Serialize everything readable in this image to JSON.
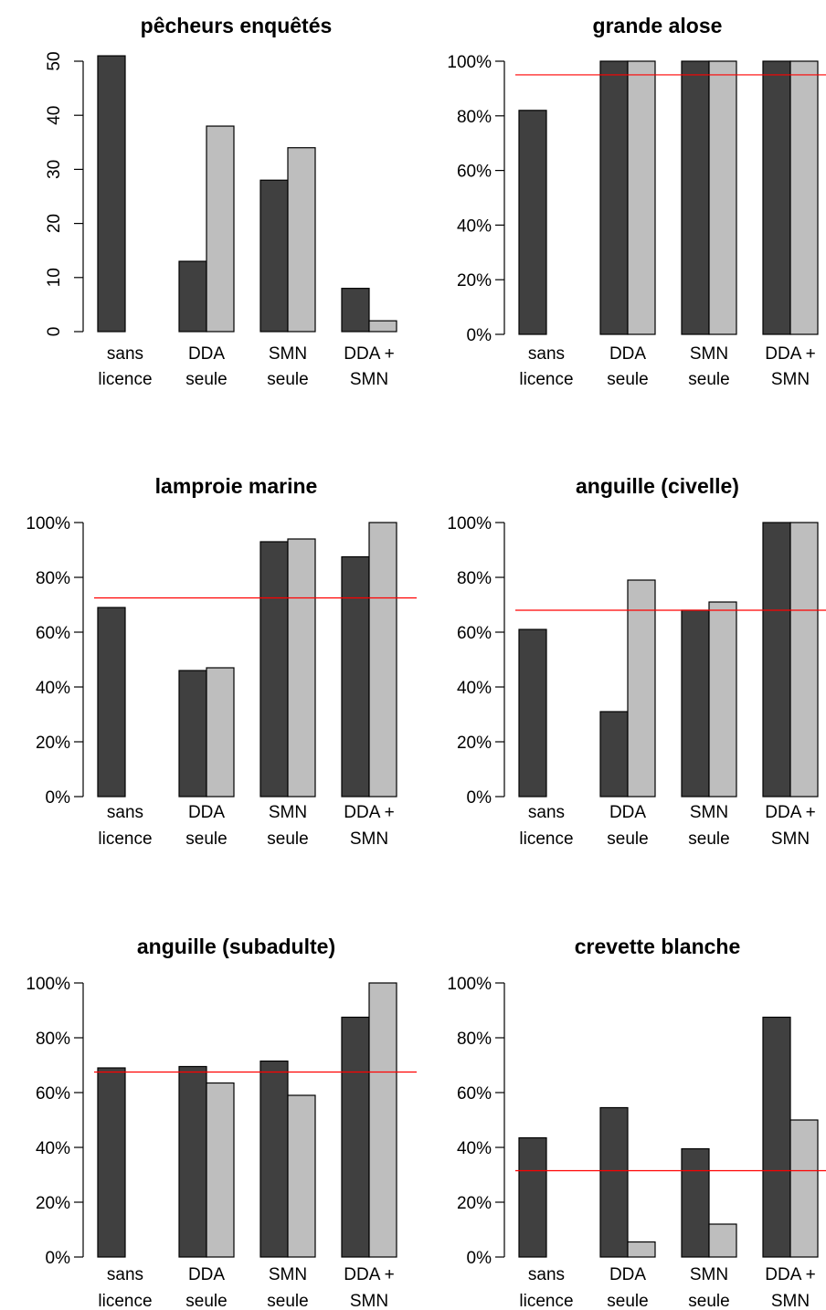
{
  "colors": {
    "dark": "#404040",
    "light": "#bebebe",
    "reference_line": "#ff0000"
  },
  "chart_data": [
    {
      "type": "bar",
      "title": "pêcheurs enquêtés",
      "categories": [
        [
          "sans",
          "licence"
        ],
        [
          "DDA",
          "seule"
        ],
        [
          "SMN",
          "seule"
        ],
        [
          "DDA +",
          "SMN"
        ]
      ],
      "ylim": [
        0,
        50
      ],
      "yticks": [
        0,
        10,
        20,
        30,
        40,
        50
      ],
      "ytick_format": "number",
      "ytick_orientation": "vertical",
      "grid": false,
      "series": [
        {
          "color": "dark",
          "values": [
            51,
            13,
            28,
            8
          ]
        },
        {
          "color": "light",
          "values": [
            null,
            38,
            34,
            2
          ]
        }
      ],
      "reference_line": null
    },
    {
      "type": "bar",
      "title": "grande alose",
      "categories": [
        [
          "sans",
          "licence"
        ],
        [
          "DDA",
          "seule"
        ],
        [
          "SMN",
          "seule"
        ],
        [
          "DDA +",
          "SMN"
        ]
      ],
      "ylim": [
        0,
        100
      ],
      "yticks": [
        0,
        20,
        40,
        60,
        80,
        100
      ],
      "ytick_format": "percent",
      "ytick_orientation": "horizontal",
      "grid": false,
      "series": [
        {
          "color": "dark",
          "values": [
            82,
            100,
            100,
            100
          ]
        },
        {
          "color": "light",
          "values": [
            null,
            100,
            100,
            100
          ]
        }
      ],
      "reference_line": 95
    },
    {
      "type": "bar",
      "title": "lamproie marine",
      "categories": [
        [
          "sans",
          "licence"
        ],
        [
          "DDA",
          "seule"
        ],
        [
          "SMN",
          "seule"
        ],
        [
          "DDA +",
          "SMN"
        ]
      ],
      "ylim": [
        0,
        100
      ],
      "yticks": [
        0,
        20,
        40,
        60,
        80,
        100
      ],
      "ytick_format": "percent",
      "ytick_orientation": "horizontal",
      "grid": false,
      "series": [
        {
          "color": "dark",
          "values": [
            69,
            46,
            93,
            87.5
          ]
        },
        {
          "color": "light",
          "values": [
            null,
            47,
            94,
            100
          ]
        }
      ],
      "reference_line": 72.5
    },
    {
      "type": "bar",
      "title": "anguille (civelle)",
      "categories": [
        [
          "sans",
          "licence"
        ],
        [
          "DDA",
          "seule"
        ],
        [
          "SMN",
          "seule"
        ],
        [
          "DDA +",
          "SMN"
        ]
      ],
      "ylim": [
        0,
        100
      ],
      "yticks": [
        0,
        20,
        40,
        60,
        80,
        100
      ],
      "ytick_format": "percent",
      "ytick_orientation": "horizontal",
      "grid": false,
      "series": [
        {
          "color": "dark",
          "values": [
            61,
            31,
            68,
            100
          ]
        },
        {
          "color": "light",
          "values": [
            null,
            79,
            71,
            100
          ]
        }
      ],
      "reference_line": 68
    },
    {
      "type": "bar",
      "title": "anguille (subadulte)",
      "categories": [
        [
          "sans",
          "licence"
        ],
        [
          "DDA",
          "seule"
        ],
        [
          "SMN",
          "seule"
        ],
        [
          "DDA +",
          "SMN"
        ]
      ],
      "ylim": [
        0,
        100
      ],
      "yticks": [
        0,
        20,
        40,
        60,
        80,
        100
      ],
      "ytick_format": "percent",
      "ytick_orientation": "horizontal",
      "grid": false,
      "series": [
        {
          "color": "dark",
          "values": [
            69,
            69.5,
            71.5,
            87.5
          ]
        },
        {
          "color": "light",
          "values": [
            null,
            63.5,
            59,
            100
          ]
        }
      ],
      "reference_line": 67.5
    },
    {
      "type": "bar",
      "title": "crevette blanche",
      "categories": [
        [
          "sans",
          "licence"
        ],
        [
          "DDA",
          "seule"
        ],
        [
          "SMN",
          "seule"
        ],
        [
          "DDA +",
          "SMN"
        ]
      ],
      "ylim": [
        0,
        100
      ],
      "yticks": [
        0,
        20,
        40,
        60,
        80,
        100
      ],
      "ytick_format": "percent",
      "ytick_orientation": "horizontal",
      "grid": false,
      "series": [
        {
          "color": "dark",
          "values": [
            43.5,
            54.5,
            39.5,
            87.5
          ]
        },
        {
          "color": "light",
          "values": [
            null,
            5.5,
            12,
            50
          ]
        }
      ],
      "reference_line": 31.5
    }
  ]
}
